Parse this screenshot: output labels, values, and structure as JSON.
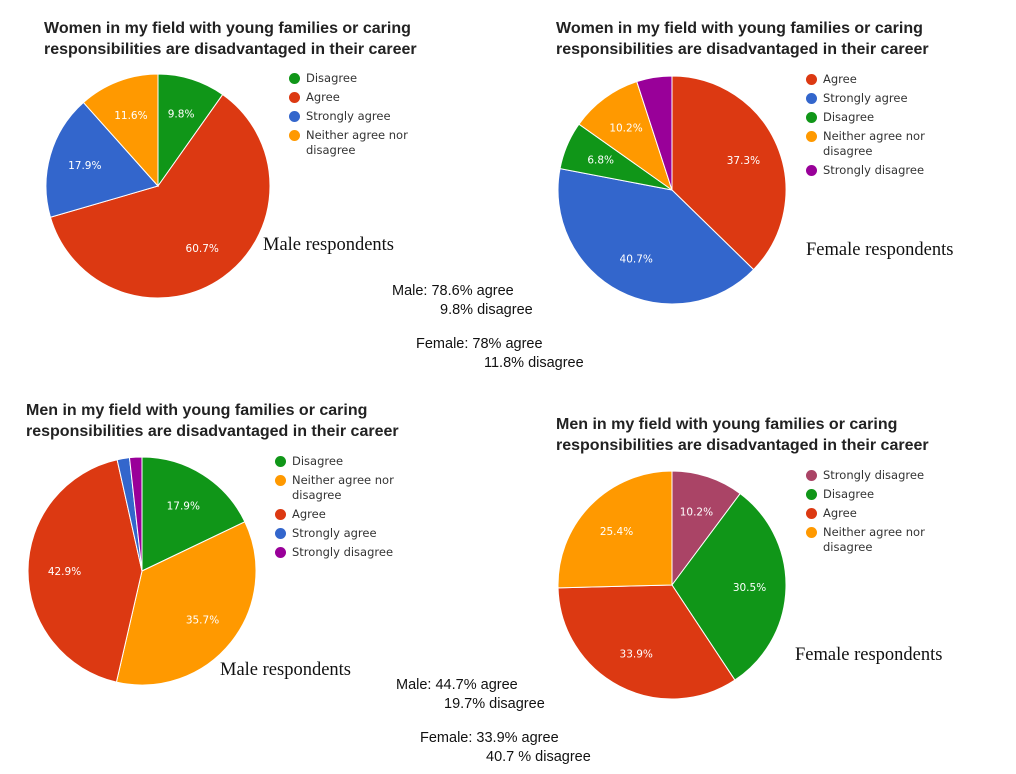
{
  "chart_data": [
    {
      "type": "pie",
      "title": "Women in my field with young families or caring\nresponsibilities are disadvantaged in their career",
      "respondents_label": "Male respondents",
      "slices": [
        {
          "name": "Disagree",
          "value": 9.8,
          "color": "#109618",
          "label": "9.8%"
        },
        {
          "name": "Agree",
          "value": 60.7,
          "color": "#dc3912",
          "label": "60.7%"
        },
        {
          "name": "Strongly agree",
          "value": 17.9,
          "color": "#3366cc",
          "label": "17.9%"
        },
        {
          "name": "Neither agree nor\ndisagree",
          "value": 11.6,
          "color": "#ff9900",
          "label": "11.6%"
        }
      ],
      "legend": [
        "Disagree",
        "Agree",
        "Strongly agree",
        "Neither agree nor\ndisagree"
      ]
    },
    {
      "type": "pie",
      "title": "Women in my field with young families or caring\nresponsibilities are disadvantaged in their career",
      "respondents_label": "Female respondents",
      "slices": [
        {
          "name": "Agree",
          "value": 37.3,
          "color": "#dc3912",
          "label": "37.3%"
        },
        {
          "name": "Strongly agree",
          "value": 40.7,
          "color": "#3366cc",
          "label": "40.7%"
        },
        {
          "name": "Disagree",
          "value": 6.8,
          "color": "#109618",
          "label": "6.8%"
        },
        {
          "name": "Neither agree nor\ndisagree",
          "value": 10.2,
          "color": "#ff9900",
          "label": "10.2%"
        },
        {
          "name": "Strongly disagree",
          "value": 5.0,
          "color": "#990099",
          "label": ""
        }
      ],
      "legend": [
        "Agree",
        "Strongly agree",
        "Disagree",
        "Neither agree nor\ndisagree",
        "Strongly disagree"
      ]
    },
    {
      "type": "pie",
      "title": "Men in my field with young families or caring\nresponsibilities are disadvantaged in their career",
      "respondents_label": "Male respondents",
      "slices": [
        {
          "name": "Disagree",
          "value": 17.9,
          "color": "#109618",
          "label": "17.9%"
        },
        {
          "name": "Neither agree nor\ndisagree",
          "value": 35.7,
          "color": "#ff9900",
          "label": "35.7%"
        },
        {
          "name": "Agree",
          "value": 42.9,
          "color": "#dc3912",
          "label": "42.9%"
        },
        {
          "name": "Strongly agree",
          "value": 1.75,
          "color": "#3366cc",
          "label": ""
        },
        {
          "name": "Strongly disagree",
          "value": 1.75,
          "color": "#990099",
          "label": ""
        }
      ],
      "legend": [
        "Disagree",
        "Neither agree nor\ndisagree",
        "Agree",
        "Strongly agree",
        "Strongly disagree"
      ]
    },
    {
      "type": "pie",
      "title": "Men in my field with young families or caring\nresponsibilities are disadvantaged in their career",
      "respondents_label": "Female respondents",
      "slices": [
        {
          "name": "Strongly disagree",
          "value": 10.2,
          "color": "#aa4466",
          "label": "10.2%"
        },
        {
          "name": "Disagree",
          "value": 30.5,
          "color": "#109618",
          "label": "30.5%"
        },
        {
          "name": "Agree",
          "value": 33.9,
          "color": "#dc3912",
          "label": "33.9%"
        },
        {
          "name": "Neither agree nor\ndisagree",
          "value": 25.4,
          "color": "#ff9900",
          "label": "25.4%"
        }
      ],
      "legend": [
        "Strongly disagree",
        "Disagree",
        "Agree",
        "Neither agree nor\ndisagree"
      ]
    }
  ],
  "summaries": {
    "top": {
      "male_line1": "Male: 78.6% agree",
      "male_line2": "9.8% disagree",
      "female_line1": "Female: 78% agree",
      "female_line2": "11.8% disagree"
    },
    "bottom": {
      "male_line1": "Male: 44.7% agree",
      "male_line2": "19.7% disagree",
      "female_line1": "Female: 33.9% agree",
      "female_line2": "40.7 % disagree"
    }
  }
}
